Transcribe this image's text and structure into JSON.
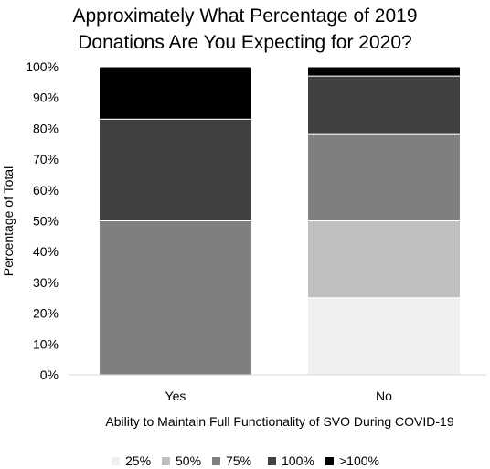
{
  "chart_data": {
    "type": "bar",
    "stacked": true,
    "title": [
      "Approximately What Percentage of 2019",
      "Donations Are You Expecting for 2020?"
    ],
    "xlabel": "Ability to Maintain Full Functionality of SVO During COVID-19",
    "ylabel": "Percentage of Total",
    "categories": [
      "Yes",
      "No"
    ],
    "ylim": [
      0,
      100
    ],
    "yticks": [
      "0%",
      "10%",
      "20%",
      "30%",
      "40%",
      "50%",
      "60%",
      "70%",
      "80%",
      "90%",
      "100%"
    ],
    "series": [
      {
        "name": "25%",
        "color": "#efefef",
        "values": [
          0,
          25
        ]
      },
      {
        "name": "50%",
        "color": "#bfbfbf",
        "values": [
          0,
          25
        ]
      },
      {
        "name": "75%",
        "color": "#7f7f7f",
        "values": [
          50,
          28
        ]
      },
      {
        "name": "100%",
        "color": "#404040",
        "values": [
          33,
          19
        ]
      },
      {
        "name": ">100%",
        "color": "#000000",
        "values": [
          17,
          3
        ]
      }
    ],
    "legend_position": "bottom",
    "grid": false
  }
}
